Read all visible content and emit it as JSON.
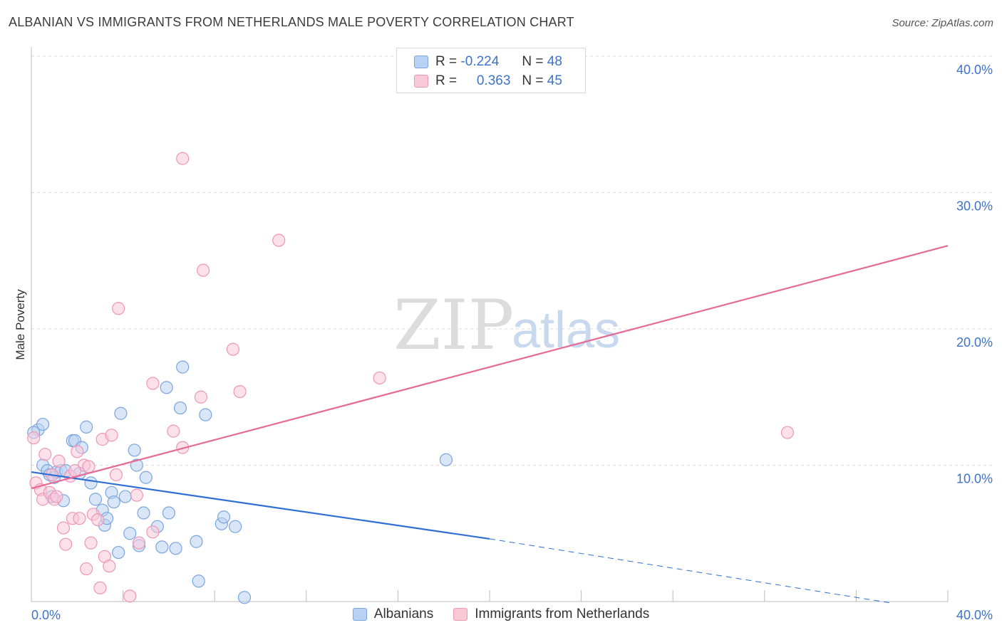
{
  "title": "ALBANIAN VS IMMIGRANTS FROM NETHERLANDS MALE POVERTY CORRELATION CHART",
  "source": "Source: ZipAtlas.com",
  "watermark": {
    "zip": "ZIP",
    "atlas": "atlas"
  },
  "legend": {
    "r_label": "R =",
    "n_label": "N =",
    "rows": [
      {
        "name": "Albanians",
        "r": "-0.224",
        "n": "48"
      },
      {
        "name": "Immigrants from Netherlands",
        "r": "0.363",
        "n": "45"
      }
    ]
  },
  "colors": {
    "blue_fill": "#b9d1f2",
    "blue_stroke": "#7aa5e0",
    "blue_line": "#2f6fd4",
    "pink_fill": "#f9c9d8",
    "pink_stroke": "#ee96b5",
    "pink_line": "#e56a94",
    "tick_text": "#3d73c8",
    "grid": "#d9d9d9"
  },
  "chart_data": {
    "type": "scatter",
    "title": "ALBANIAN VS IMMIGRANTS FROM NETHERLANDS MALE POVERTY CORRELATION CHART",
    "xlabel": "",
    "ylabel": "Male Poverty",
    "xlim": [
      0,
      40
    ],
    "ylim": [
      0,
      40
    ],
    "x_ticks": [
      "0.0%",
      "40.0%"
    ],
    "y_ticks": [
      {
        "value": 10,
        "label": "10.0%"
      },
      {
        "value": 20,
        "label": "20.0%"
      },
      {
        "value": 30,
        "label": "30.0%"
      },
      {
        "value": 40,
        "label": "40.0%"
      }
    ],
    "series": [
      {
        "name": "Albanians",
        "points": [
          [
            0.3,
            12.6
          ],
          [
            0.5,
            10.0
          ],
          [
            0.5,
            13.0
          ],
          [
            0.7,
            9.6
          ],
          [
            0.8,
            9.3
          ],
          [
            0.9,
            7.7
          ],
          [
            1.0,
            9.1
          ],
          [
            1.1,
            9.5
          ],
          [
            1.3,
            9.6
          ],
          [
            1.4,
            7.4
          ],
          [
            1.5,
            9.6
          ],
          [
            1.8,
            11.8
          ],
          [
            1.9,
            11.8
          ],
          [
            2.1,
            9.4
          ],
          [
            2.2,
            11.3
          ],
          [
            2.4,
            12.8
          ],
          [
            2.6,
            8.7
          ],
          [
            2.8,
            7.5
          ],
          [
            3.1,
            6.7
          ],
          [
            3.2,
            5.6
          ],
          [
            3.3,
            6.1
          ],
          [
            3.5,
            8.0
          ],
          [
            3.6,
            7.3
          ],
          [
            3.8,
            3.6
          ],
          [
            3.9,
            13.8
          ],
          [
            4.1,
            7.7
          ],
          [
            4.3,
            5.0
          ],
          [
            4.5,
            11.1
          ],
          [
            4.6,
            10.0
          ],
          [
            4.7,
            4.1
          ],
          [
            4.9,
            6.5
          ],
          [
            5.0,
            9.1
          ],
          [
            5.5,
            5.5
          ],
          [
            5.7,
            4.0
          ],
          [
            5.9,
            15.7
          ],
          [
            6.0,
            6.5
          ],
          [
            6.3,
            3.9
          ],
          [
            6.5,
            14.2
          ],
          [
            6.6,
            17.2
          ],
          [
            7.2,
            4.4
          ],
          [
            7.3,
            1.5
          ],
          [
            7.6,
            13.7
          ],
          [
            8.3,
            5.7
          ],
          [
            8.4,
            6.2
          ],
          [
            8.9,
            5.5
          ],
          [
            9.3,
            0.3
          ],
          [
            18.1,
            10.4
          ],
          [
            0.1,
            12.4
          ]
        ]
      },
      {
        "name": "Immigrants from Netherlands",
        "points": [
          [
            0.1,
            12.0
          ],
          [
            0.2,
            8.7
          ],
          [
            0.4,
            8.2
          ],
          [
            0.5,
            7.5
          ],
          [
            0.6,
            10.8
          ],
          [
            0.8,
            8.0
          ],
          [
            1.0,
            7.5
          ],
          [
            1.1,
            7.7
          ],
          [
            1.2,
            10.3
          ],
          [
            1.4,
            5.4
          ],
          [
            1.5,
            4.2
          ],
          [
            1.7,
            9.2
          ],
          [
            1.8,
            6.1
          ],
          [
            2.0,
            11.0
          ],
          [
            2.1,
            6.1
          ],
          [
            2.3,
            10.0
          ],
          [
            2.4,
            2.4
          ],
          [
            2.6,
            4.3
          ],
          [
            2.7,
            6.4
          ],
          [
            2.9,
            6.0
          ],
          [
            3.0,
            1.0
          ],
          [
            3.1,
            11.9
          ],
          [
            3.2,
            3.3
          ],
          [
            3.4,
            2.6
          ],
          [
            3.5,
            12.2
          ],
          [
            3.7,
            9.3
          ],
          [
            3.8,
            21.5
          ],
          [
            4.3,
            0.4
          ],
          [
            4.6,
            7.8
          ],
          [
            4.7,
            4.3
          ],
          [
            5.3,
            5.1
          ],
          [
            5.3,
            16.0
          ],
          [
            6.2,
            12.5
          ],
          [
            6.6,
            11.3
          ],
          [
            6.6,
            32.5
          ],
          [
            7.4,
            15.0
          ],
          [
            7.5,
            24.3
          ],
          [
            8.8,
            18.5
          ],
          [
            9.1,
            15.4
          ],
          [
            10.8,
            26.5
          ],
          [
            15.2,
            16.4
          ],
          [
            33.0,
            12.4
          ],
          [
            1.9,
            9.6
          ],
          [
            2.5,
            9.9
          ],
          [
            0.9,
            9.3
          ]
        ]
      }
    ],
    "trend_lines": [
      {
        "series": "Albanians",
        "x0": 0,
        "y0": 9.5,
        "x1": 20,
        "y1": 4.6,
        "dashed_to_x": 37.5,
        "dashed_to_y": -0.1
      },
      {
        "series": "Immigrants from Netherlands",
        "x0": 0,
        "y0": 8.3,
        "x1": 40,
        "y1": 26.1
      }
    ]
  }
}
